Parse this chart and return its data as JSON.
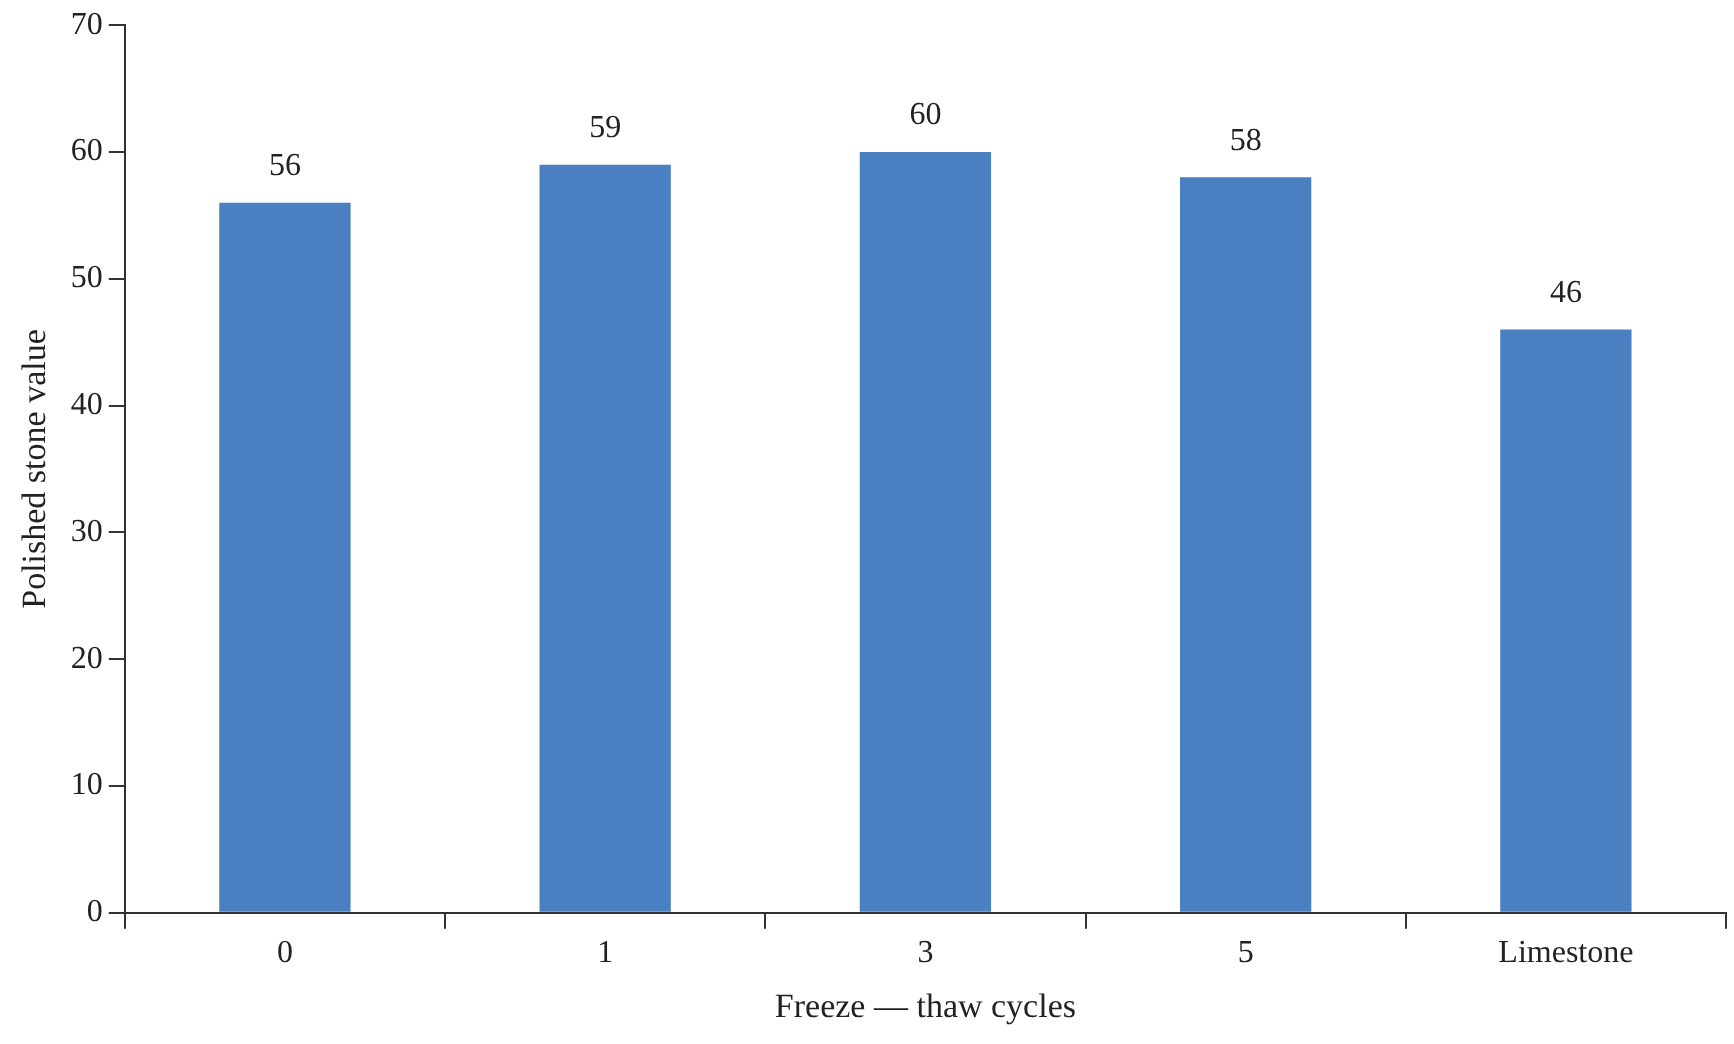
{
  "chart_data": {
    "type": "bar",
    "xlabel": "Freeze — thaw cycles",
    "ylabel": "Polished stone value",
    "categories": [
      "0",
      "1",
      "3",
      "5",
      "Limestone"
    ],
    "values": [
      56,
      59,
      60,
      58,
      46
    ],
    "color": "#4a7fc1",
    "ylim": [
      0,
      70
    ],
    "yticks": [
      0,
      10,
      20,
      30,
      40,
      50,
      60,
      70
    ],
    "grid": false,
    "data_labels": true
  }
}
